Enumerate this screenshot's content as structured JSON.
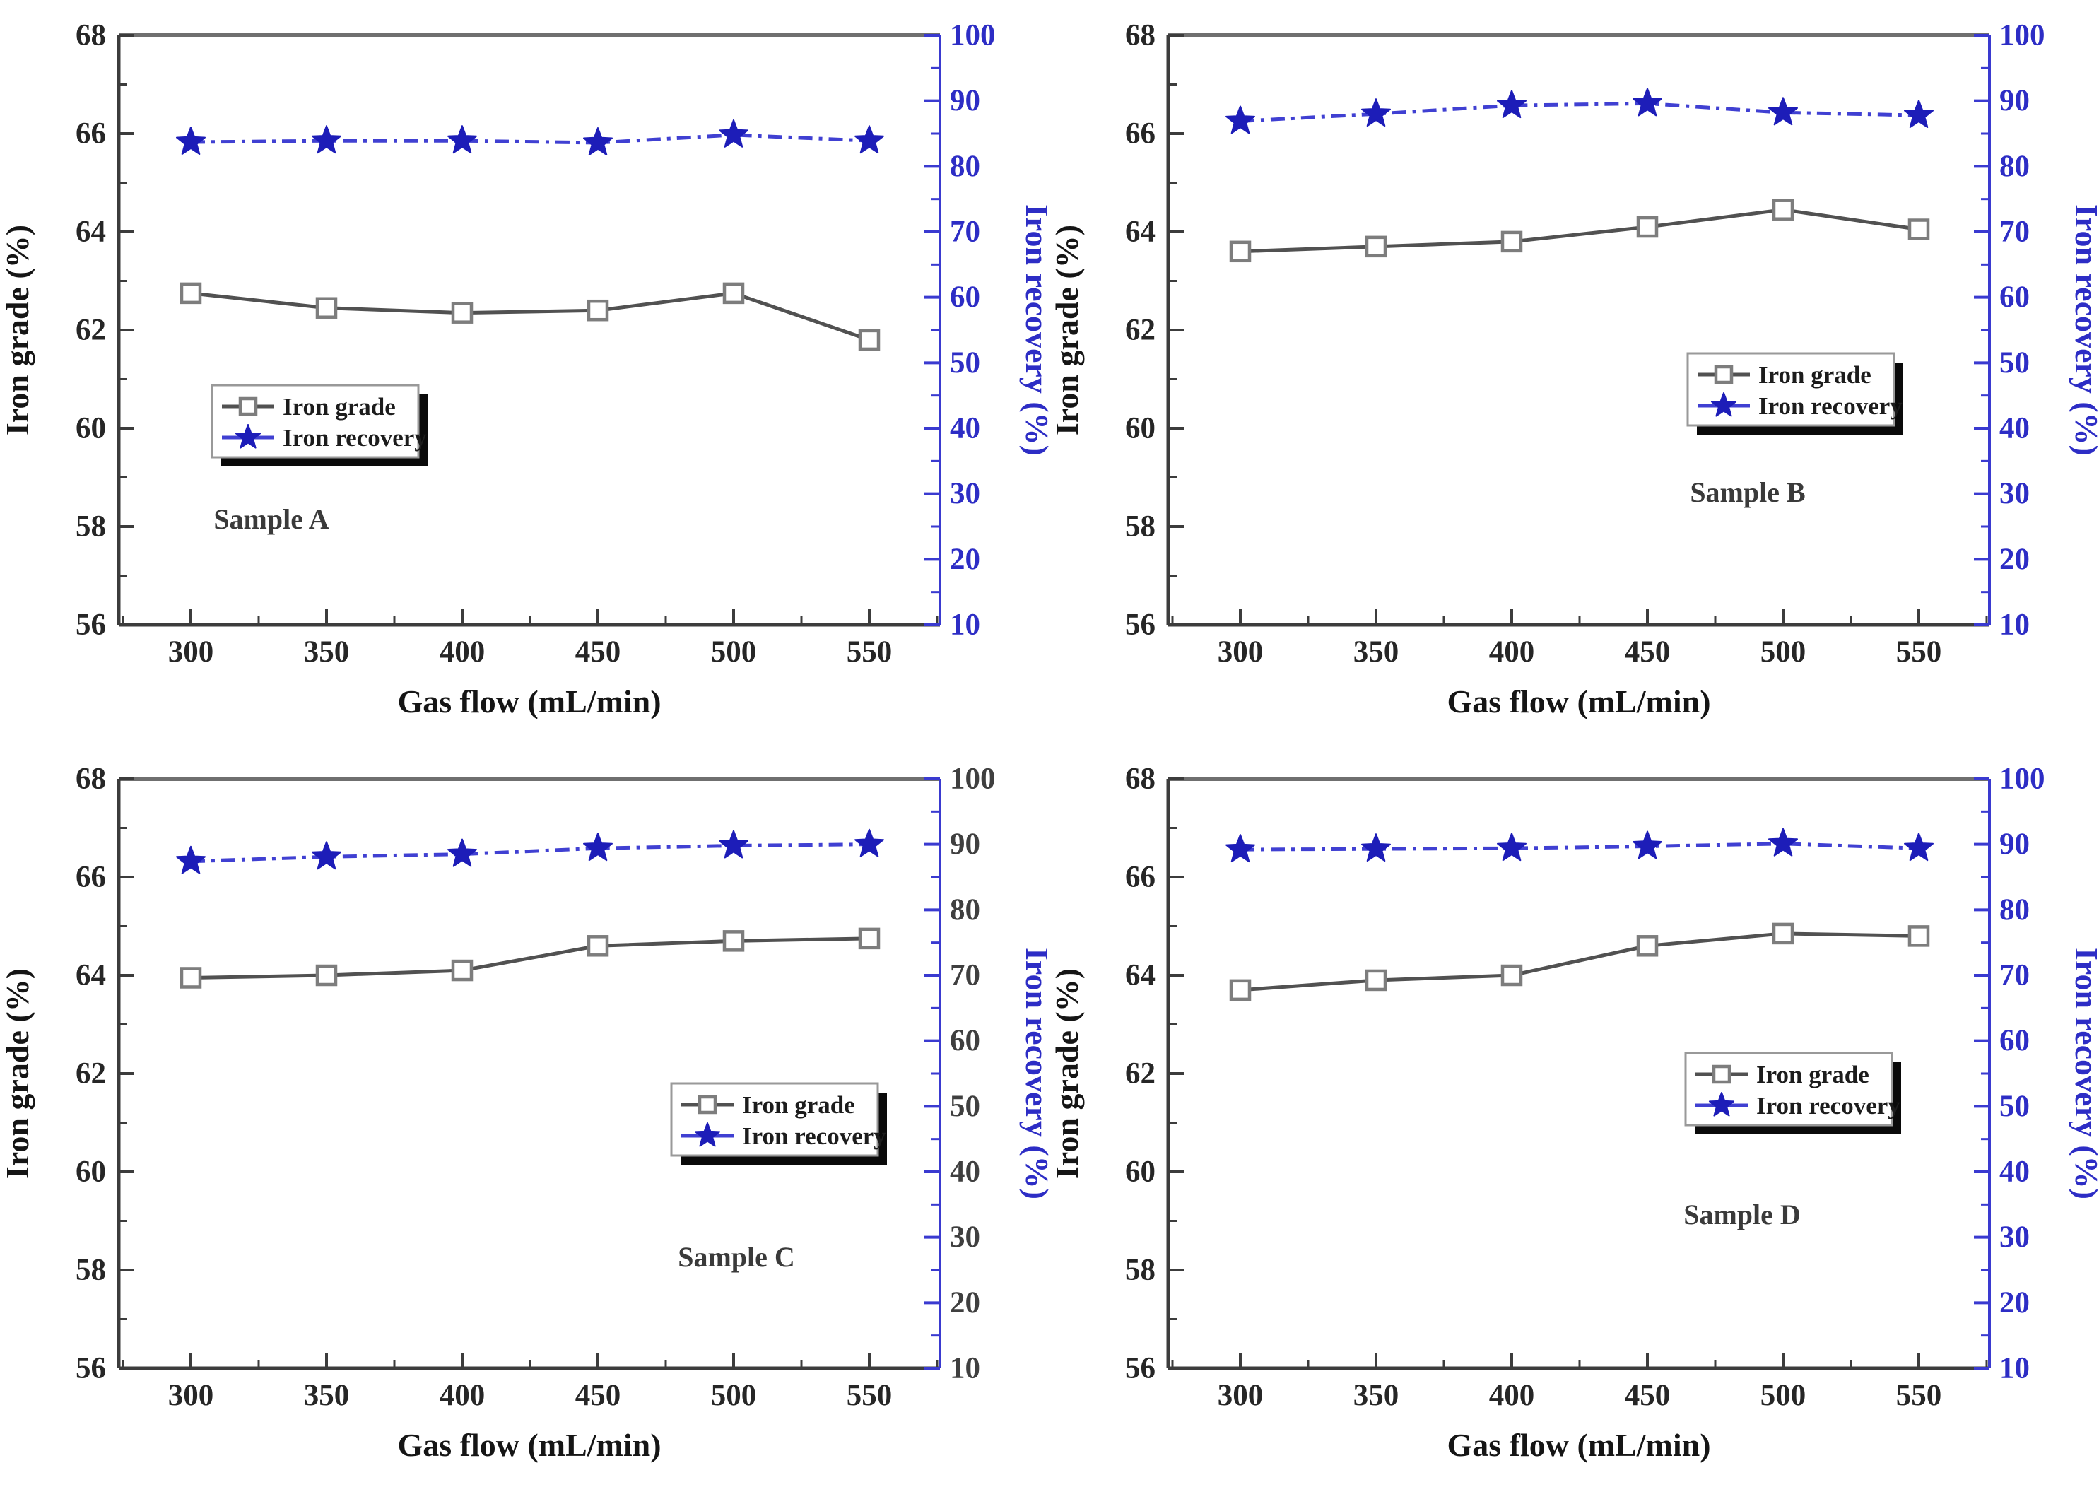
{
  "figure_title": "",
  "style": {
    "background": "#ffffff",
    "axis_dark": "#3c3c3c",
    "axis_top": "#6f6f6f",
    "axis_blue": "#3a3ad0",
    "text_dark": "#262626",
    "blue_text": "#2d2dc5",
    "grade_line": "#515151",
    "grade_marker_stroke": "#7d7d7d",
    "grade_marker_fill": "#ffffff",
    "recovery_line": "#4040d2",
    "recovery_marker": "#1d1db8",
    "legend_border": "#999999",
    "legend_shadow": "#0a0a0a",
    "legend_bg": "#ffffff"
  },
  "chart_data": [
    {
      "type": "line",
      "sample": "Sample A",
      "x_label": "Gas flow (mL/min)",
      "y_left_label": "Iron grade (%)",
      "y_right_label": "Iron recovery (%)",
      "x": [
        300,
        350,
        400,
        450,
        500,
        550
      ],
      "x_ticks": [
        300,
        350,
        400,
        450,
        500,
        550
      ],
      "y_left_ticks": [
        56,
        58,
        60,
        62,
        64,
        66,
        68
      ],
      "y_right_ticks": [
        10,
        20,
        30,
        40,
        50,
        60,
        70,
        80,
        90,
        100
      ],
      "y_left_range": [
        56,
        68
      ],
      "y_right_range": [
        10,
        100
      ],
      "series": [
        {
          "name": "Iron grade",
          "axis": "left",
          "marker": "open-square",
          "line_style": "solid",
          "values": [
            62.75,
            62.45,
            62.35,
            62.4,
            62.75,
            61.8
          ]
        },
        {
          "name": "Iron recovery",
          "axis": "right",
          "marker": "star",
          "line_style": "dash-dot",
          "values": [
            83.7,
            83.9,
            83.9,
            83.6,
            84.8,
            83.9
          ]
        }
      ],
      "legend_pos": {
        "x": 300,
        "y": 545
      },
      "sample_label_pos": {
        "x": 384,
        "y": 748
      },
      "right_tick_label_color": "#2d2dc5"
    },
    {
      "type": "line",
      "sample": "Sample B",
      "x_label": "Gas flow (mL/min)",
      "y_left_label": "Iron grade (%)",
      "y_right_label": "Iron recovery (%)",
      "x": [
        300,
        350,
        400,
        450,
        500,
        550
      ],
      "x_ticks": [
        300,
        350,
        400,
        450,
        500,
        550
      ],
      "y_left_ticks": [
        56,
        58,
        60,
        62,
        64,
        66,
        68
      ],
      "y_right_ticks": [
        10,
        20,
        30,
        40,
        50,
        60,
        70,
        80,
        90,
        100
      ],
      "y_left_range": [
        56,
        68
      ],
      "y_right_range": [
        10,
        100
      ],
      "series": [
        {
          "name": "Iron grade",
          "axis": "left",
          "marker": "open-square",
          "line_style": "solid",
          "values": [
            63.6,
            63.7,
            63.8,
            64.1,
            64.45,
            64.05
          ]
        },
        {
          "name": "Iron recovery",
          "axis": "right",
          "marker": "star",
          "line_style": "dash-dot",
          "values": [
            86.9,
            88.0,
            89.3,
            89.6,
            88.2,
            87.8
          ]
        }
      ],
      "legend_pos": {
        "x": 903,
        "y": 500
      },
      "sample_label_pos": {
        "x": 988,
        "y": 710
      },
      "right_tick_label_color": "#2d2dc5"
    },
    {
      "type": "line",
      "sample": "Sample C",
      "x_label": "Gas flow (mL/min)",
      "y_left_label": "Iron grade (%)",
      "y_right_label": "Iron recovery (%)",
      "x": [
        300,
        350,
        400,
        450,
        500,
        550
      ],
      "x_ticks": [
        300,
        350,
        400,
        450,
        500,
        550
      ],
      "y_left_ticks": [
        56,
        58,
        60,
        62,
        64,
        66,
        68
      ],
      "y_right_ticks": [
        10,
        20,
        30,
        40,
        50,
        60,
        70,
        80,
        90,
        100
      ],
      "y_left_range": [
        56,
        68
      ],
      "y_right_range": [
        10,
        100
      ],
      "series": [
        {
          "name": "Iron grade",
          "axis": "left",
          "marker": "open-square",
          "line_style": "solid",
          "values": [
            63.95,
            64.0,
            64.1,
            64.6,
            64.7,
            64.75
          ]
        },
        {
          "name": "Iron recovery",
          "axis": "right",
          "marker": "star",
          "line_style": "dash-dot",
          "values": [
            87.4,
            88.1,
            88.5,
            89.4,
            89.8,
            90.0
          ]
        }
      ],
      "legend_pos": {
        "x": 950,
        "y": 481
      },
      "sample_label_pos": {
        "x": 1042,
        "y": 740
      },
      "right_tick_label_color": "#3f3f3f"
    },
    {
      "type": "line",
      "sample": "Sample D",
      "x_label": "Gas flow (mL/min)",
      "y_left_label": "Iron grade (%)",
      "y_right_label": "Iron recovery (%)",
      "x": [
        300,
        350,
        400,
        450,
        500,
        550
      ],
      "x_ticks": [
        300,
        350,
        400,
        450,
        500,
        550
      ],
      "y_left_ticks": [
        56,
        58,
        60,
        62,
        64,
        66,
        68
      ],
      "y_right_ticks": [
        10,
        20,
        30,
        40,
        50,
        60,
        70,
        80,
        90,
        100
      ],
      "y_left_range": [
        56,
        68
      ],
      "y_right_range": [
        10,
        100
      ],
      "series": [
        {
          "name": "Iron grade",
          "axis": "left",
          "marker": "open-square",
          "line_style": "solid",
          "values": [
            63.7,
            63.9,
            64.0,
            64.6,
            64.85,
            64.8
          ]
        },
        {
          "name": "Iron recovery",
          "axis": "right",
          "marker": "star",
          "line_style": "dash-dot",
          "values": [
            89.2,
            89.3,
            89.4,
            89.7,
            90.1,
            89.4
          ]
        }
      ],
      "legend_pos": {
        "x": 900,
        "y": 438
      },
      "sample_label_pos": {
        "x": 980,
        "y": 680
      },
      "right_tick_label_color": "#2d2dc5"
    }
  ]
}
